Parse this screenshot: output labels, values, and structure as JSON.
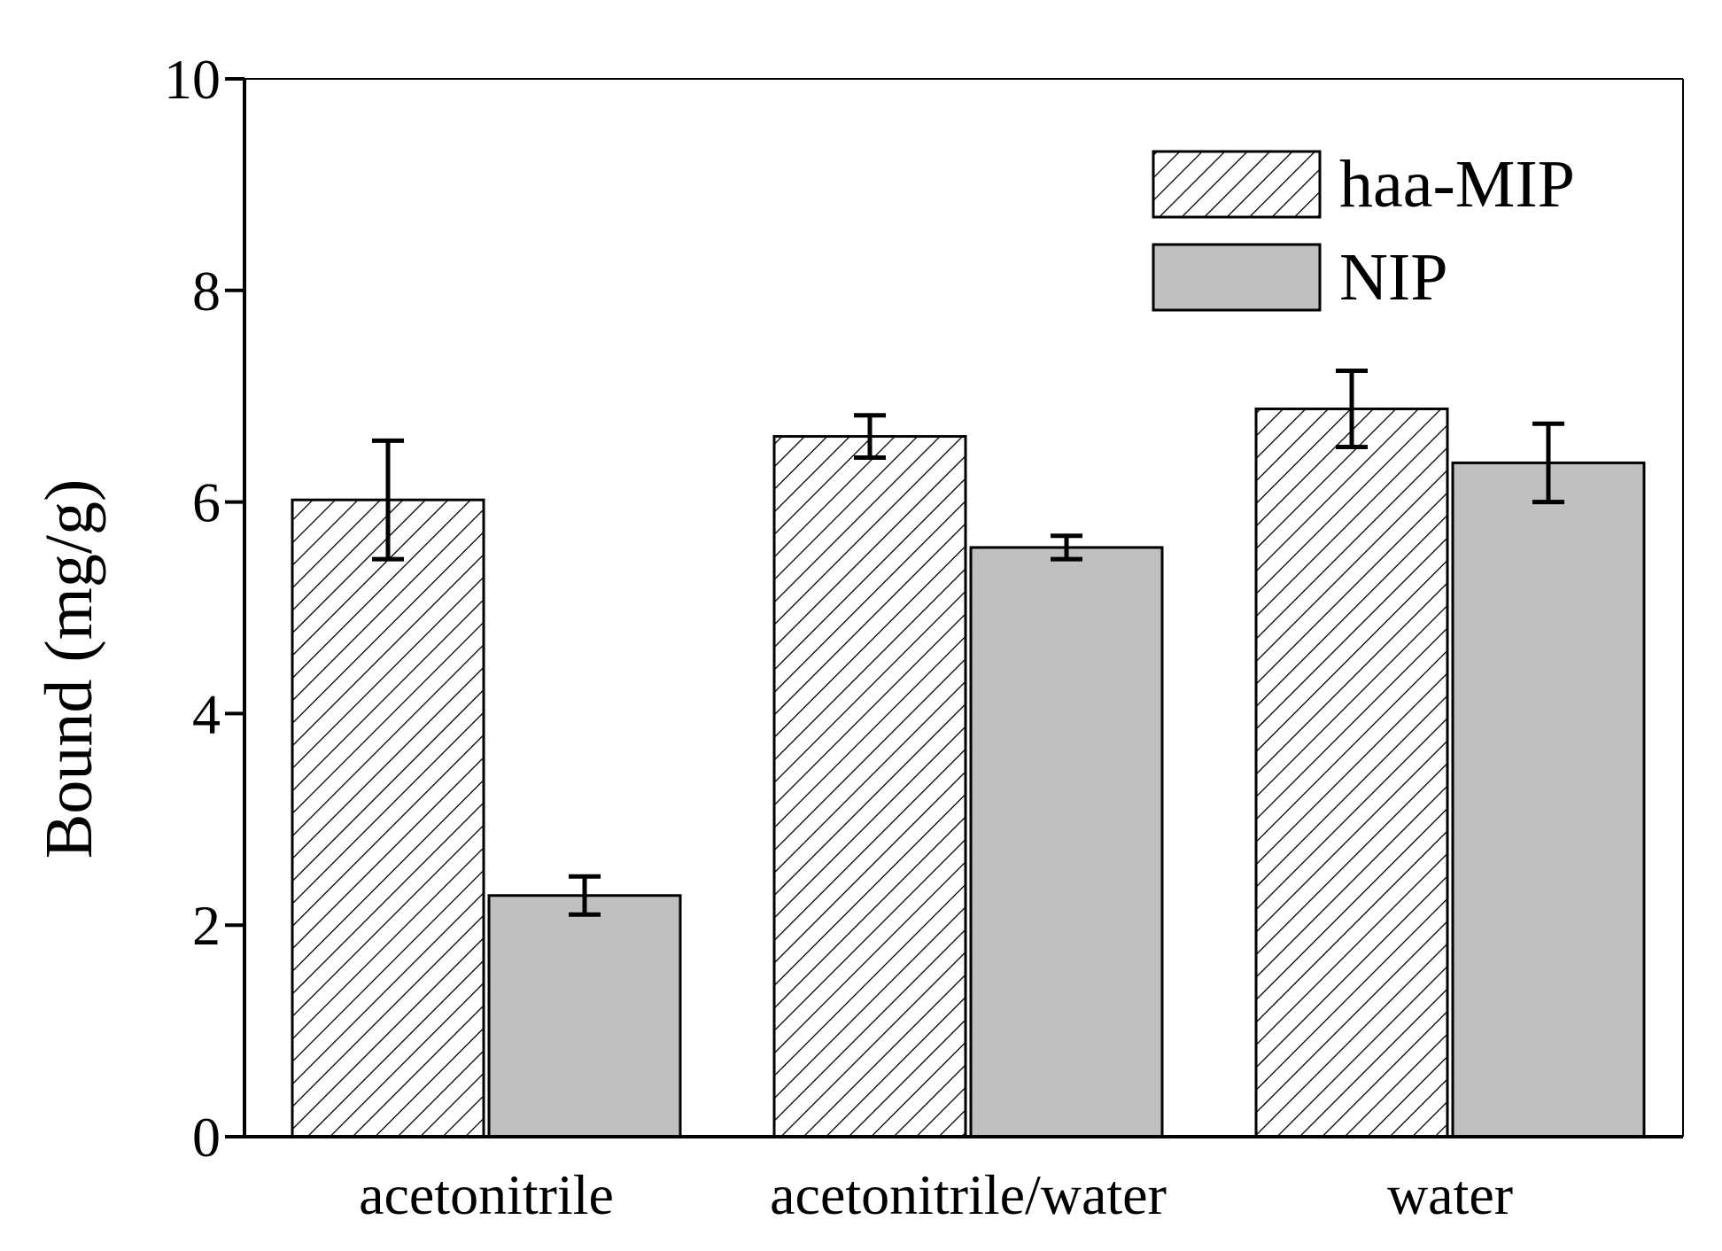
{
  "chart_data": {
    "type": "bar",
    "title": "",
    "xlabel": "",
    "ylabel": "Bound (mg/g)",
    "ylim": [
      0,
      10
    ],
    "yticks": [
      0,
      2,
      4,
      6,
      8,
      10
    ],
    "grid": false,
    "legend_position": "top-right",
    "categories": [
      "acetonitrile",
      "acetonitrile/water",
      "water"
    ],
    "series": [
      {
        "name": "haa-MIP",
        "pattern": "hatched",
        "values": [
          6.02,
          6.62,
          6.88
        ],
        "errors": [
          0.56,
          0.2,
          0.36
        ]
      },
      {
        "name": "NIP",
        "pattern": "solid",
        "color": "#c0c0c0",
        "values": [
          2.28,
          5.57,
          6.37
        ],
        "errors": [
          0.18,
          0.11,
          0.37
        ]
      }
    ]
  }
}
